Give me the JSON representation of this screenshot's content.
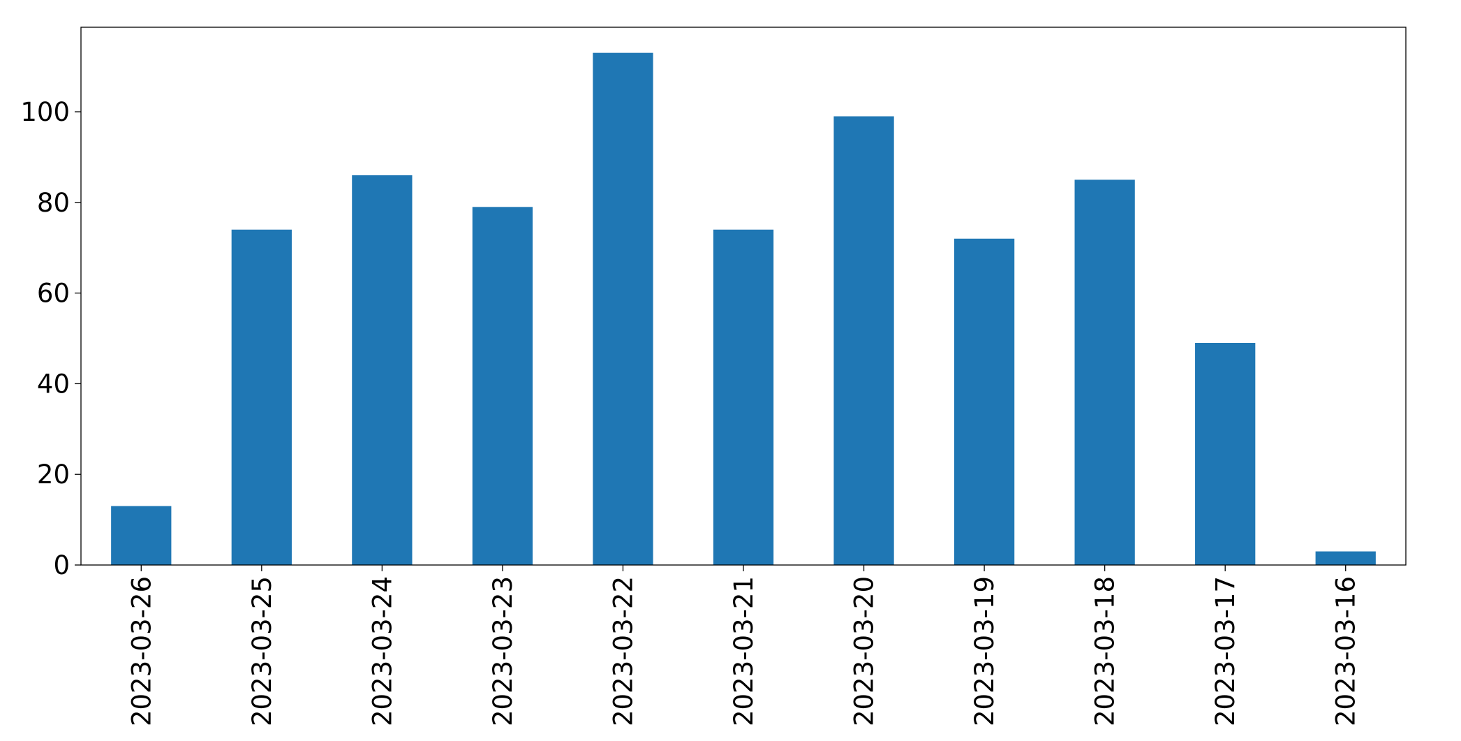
{
  "chart_data": {
    "type": "bar",
    "categories": [
      "2023-03-26",
      "2023-03-25",
      "2023-03-24",
      "2023-03-23",
      "2023-03-22",
      "2023-03-21",
      "2023-03-20",
      "2023-03-19",
      "2023-03-18",
      "2023-03-17",
      "2023-03-16"
    ],
    "values": [
      13,
      74,
      86,
      79,
      113,
      74,
      99,
      72,
      85,
      49,
      3
    ],
    "color": "#1f77b4",
    "ylim": [
      0,
      118.65
    ],
    "yticks": [
      0,
      20,
      40,
      60,
      80,
      100
    ],
    "grid": false
  }
}
